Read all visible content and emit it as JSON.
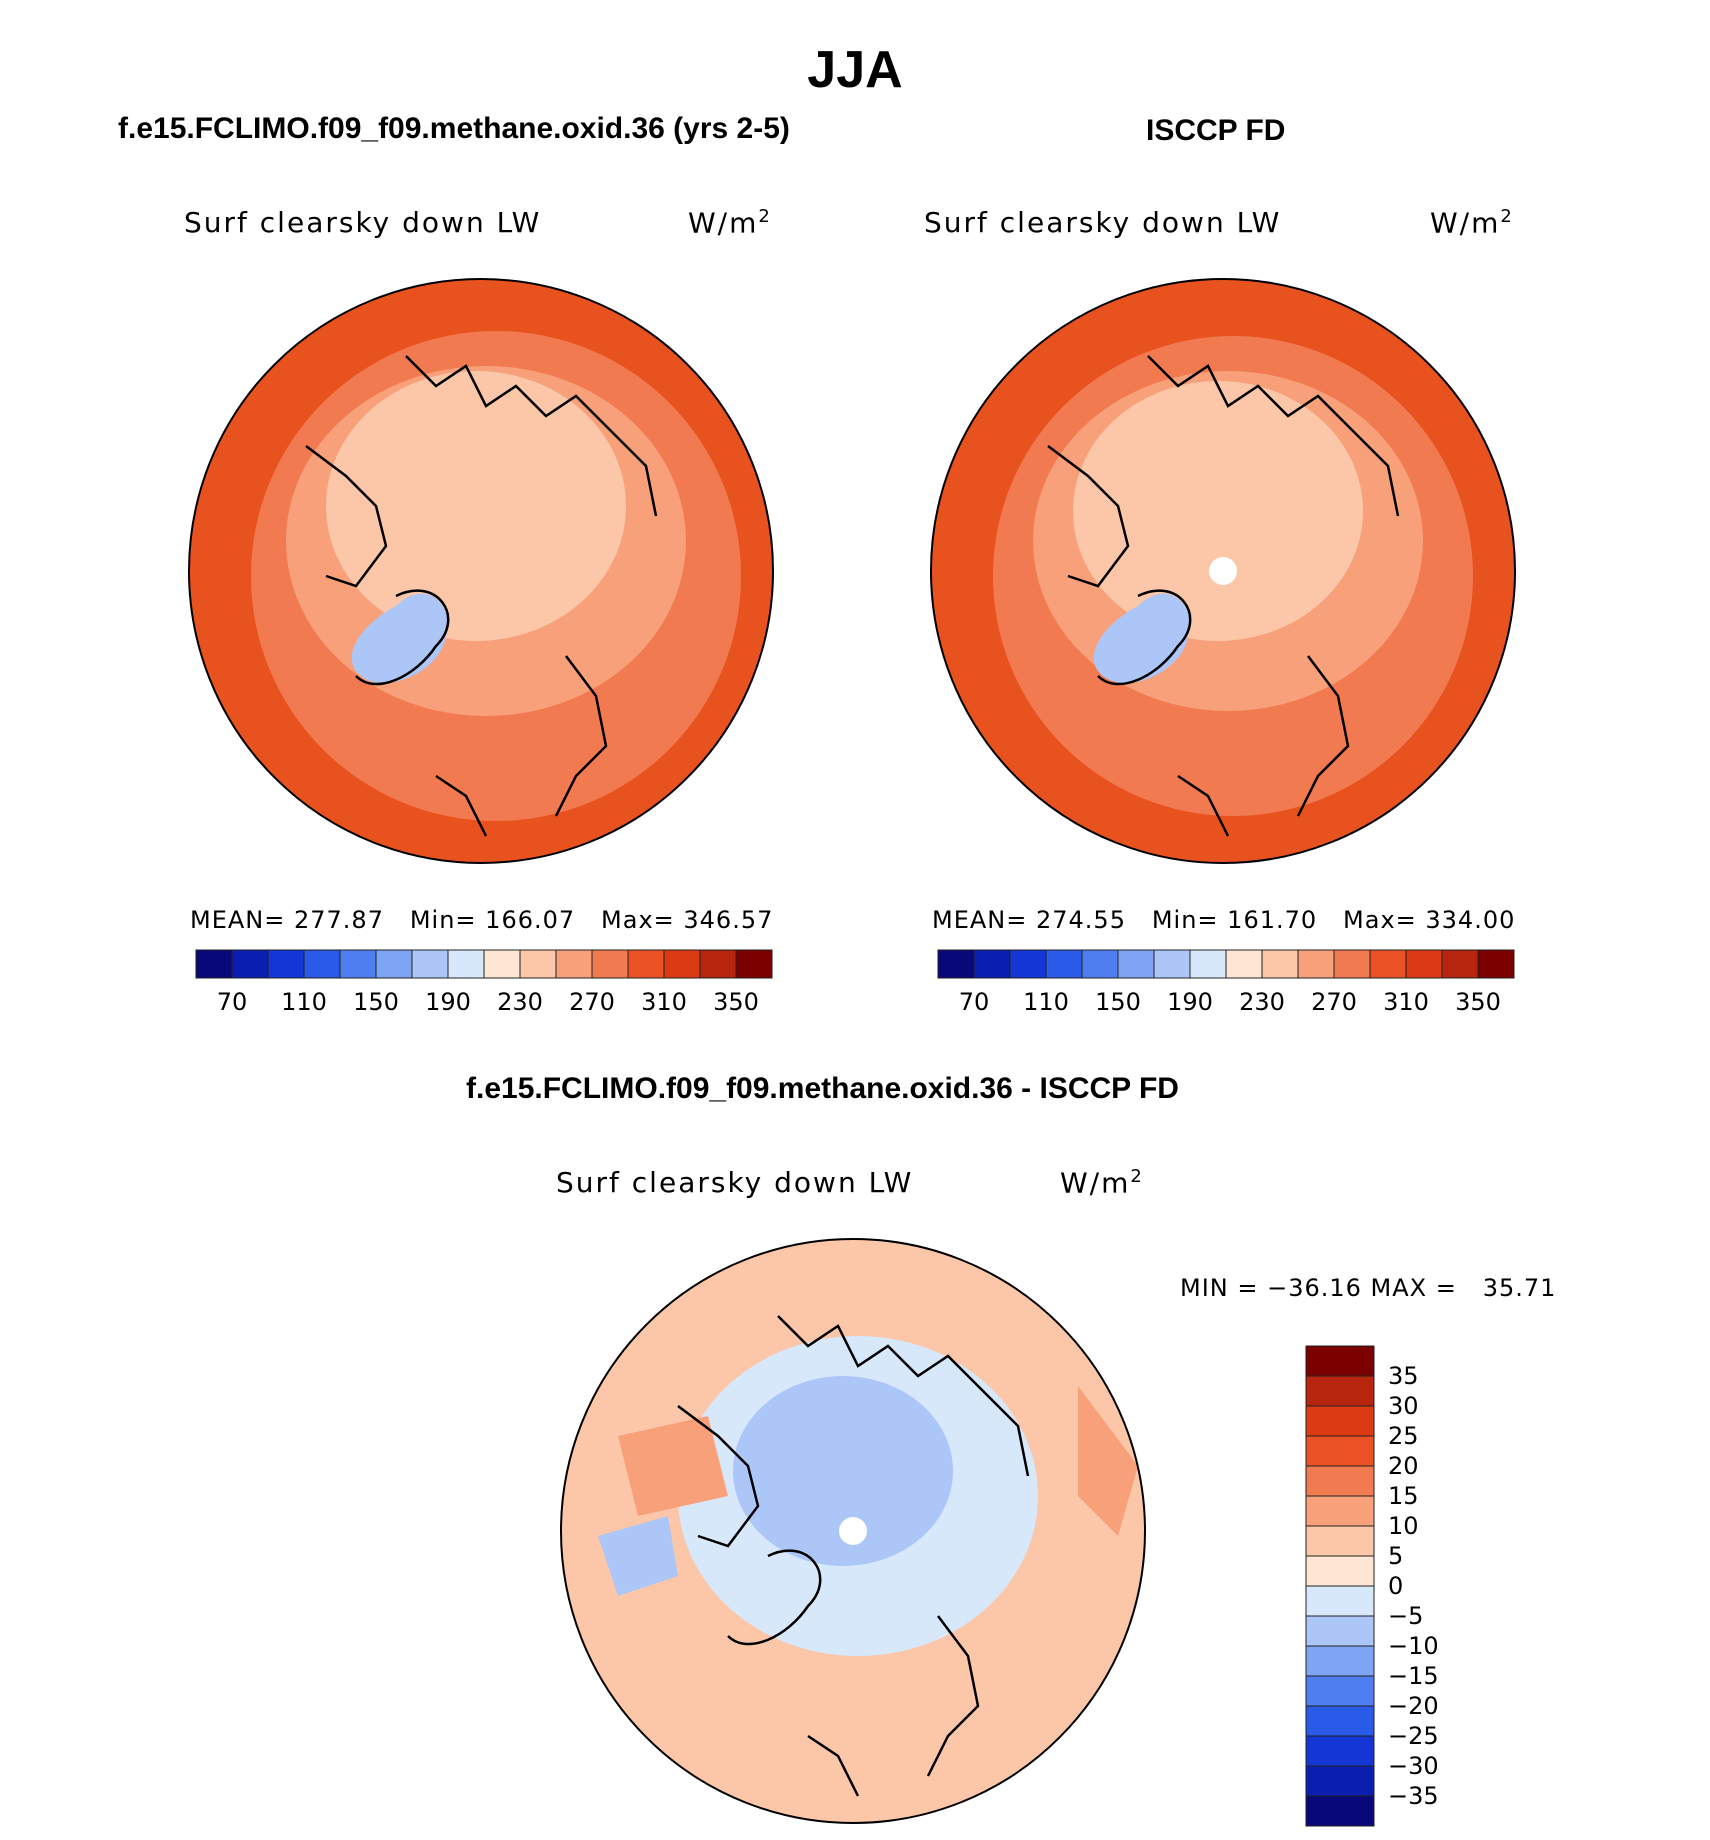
{
  "main_title": "JJA",
  "panel_left": {
    "title": "f.e15.FCLIMO.f09_f09.methane.oxid.36 (yrs 2-5)",
    "label": "Surf clearsky down LW",
    "units": "W/m",
    "units_sup": "2",
    "stats": "MEAN= 277.87   Min= 166.07   Max= 346.57"
  },
  "panel_right": {
    "title": "ISCCP FD",
    "label": "Surf clearsky down LW",
    "units": "W/m",
    "units_sup": "2",
    "stats": "MEAN= 274.55   Min= 161.70   Max= 334.00"
  },
  "panel_diff": {
    "title": "f.e15.FCLIMO.f09_f09.methane.oxid.36 - ISCCP FD",
    "label": "Surf clearsky down LW",
    "units": "W/m",
    "units_sup": "2",
    "minmax": "MIN = −36.16 MAX =   35.71"
  },
  "chart_data": [
    {
      "type": "heatmap",
      "projection": "north-polar-stereographic",
      "title": "f.e15.FCLIMO.f09_f09.methane.oxid.36 (yrs 2-5)",
      "variable": "Surf clearsky down LW",
      "units": "W/m2",
      "mean": 277.87,
      "min": 166.07,
      "max": 346.57,
      "colorbar_ticks": [
        "70",
        "110",
        "150",
        "190",
        "230",
        "270",
        "310",
        "350"
      ],
      "colorbar_colors": [
        "#08087a",
        "#0a1fb0",
        "#1436d4",
        "#2a5ae8",
        "#4f7ef0",
        "#7ea4f4",
        "#adc6f8",
        "#d8e8fb",
        "#fde6d4",
        "#fbc7a8",
        "#f7a07a",
        "#f27a50",
        "#ea5226",
        "#dc3a12",
        "#b7250e",
        "#7b0000"
      ]
    },
    {
      "type": "heatmap",
      "projection": "north-polar-stereographic",
      "title": "ISCCP FD",
      "variable": "Surf clearsky down LW",
      "units": "W/m2",
      "mean": 274.55,
      "min": 161.7,
      "max": 334.0,
      "colorbar_ticks": [
        "70",
        "110",
        "150",
        "190",
        "230",
        "270",
        "310",
        "350"
      ],
      "colorbar_colors": [
        "#08087a",
        "#0a1fb0",
        "#1436d4",
        "#2a5ae8",
        "#4f7ef0",
        "#7ea4f4",
        "#adc6f8",
        "#d8e8fb",
        "#fde6d4",
        "#fbc7a8",
        "#f7a07a",
        "#f27a50",
        "#ea5226",
        "#dc3a12",
        "#b7250e",
        "#7b0000"
      ]
    },
    {
      "type": "heatmap",
      "projection": "north-polar-stereographic",
      "title": "f.e15.FCLIMO.f09_f09.methane.oxid.36 - ISCCP FD",
      "variable": "Surf clearsky down LW",
      "units": "W/m2",
      "min": -36.16,
      "max": 35.71,
      "colorbar_ticks": [
        "35",
        "30",
        "25",
        "20",
        "15",
        "10",
        "5",
        "0",
        "−5",
        "−10",
        "−15",
        "−20",
        "−25",
        "−30",
        "−35"
      ],
      "colorbar_colors": [
        "#7b0000",
        "#b7250e",
        "#dc3a12",
        "#ea5226",
        "#f27a50",
        "#f7a07a",
        "#fbc7a8",
        "#fde6d4",
        "#d8e8fb",
        "#adc6f8",
        "#7ea4f4",
        "#4f7ef0",
        "#2a5ae8",
        "#1436d4",
        "#0a1fb0",
        "#08087a"
      ]
    }
  ],
  "colors": {
    "map_outer": "#e8521f",
    "map_mid": "#f27a50",
    "map_inner": "#f7a07a",
    "map_polar": "#fbc7a8",
    "map_greenland": "#adc6f8",
    "diff_warm": "#fbc7a8",
    "diff_cool": "#d8e8fb",
    "diff_blue": "#adc6f8"
  }
}
